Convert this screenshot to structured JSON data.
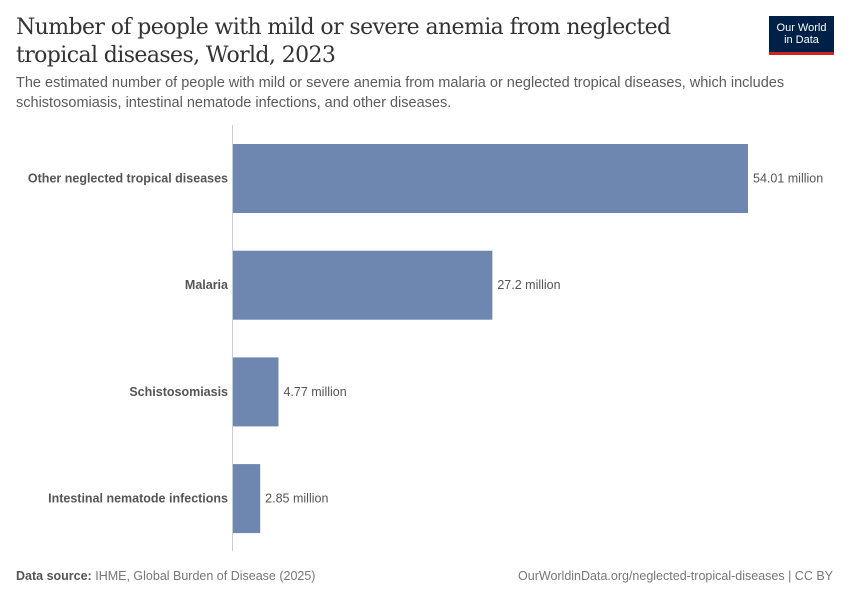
{
  "header": {
    "title": "Number of people with mild or severe anemia from neglected tropical diseases, World, 2023",
    "subtitle": "The estimated number of people with mild or severe anemia from malaria or neglected tropical diseases, which includes schistosomiasis, intestinal nematode infections, and other diseases.",
    "logo_line1": "Our World",
    "logo_line2": "in Data"
  },
  "chart_data": {
    "type": "bar",
    "orientation": "horizontal",
    "categories": [
      "Other neglected tropical diseases",
      "Malaria",
      "Schistosomiasis",
      "Intestinal nematode infections"
    ],
    "values": [
      54.01,
      27.2,
      4.77,
      2.85
    ],
    "value_labels": [
      "54.01 million",
      "27.2 million",
      "4.77 million",
      "2.85 million"
    ],
    "unit": "million",
    "bar_color": "#6d87b1",
    "grid": false
  },
  "footer": {
    "source_label": "Data source:",
    "source_text": "IHME, Global Burden of Disease (2025)",
    "url": "OurWorldinData.org/neglected-tropical-diseases | CC BY"
  }
}
